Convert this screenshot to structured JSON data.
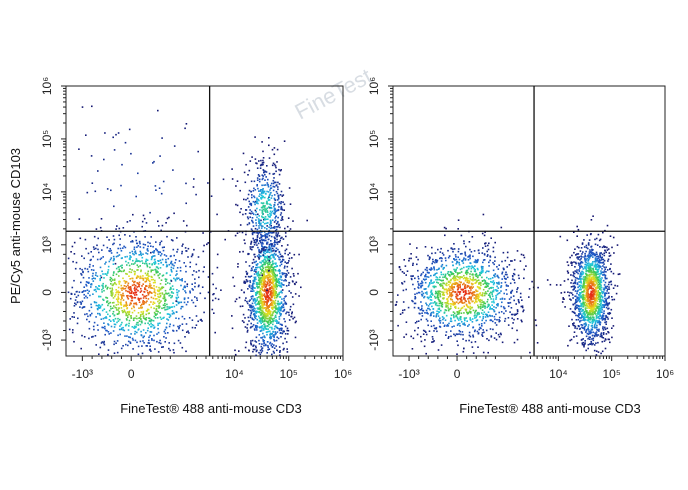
{
  "chart_data": [
    {
      "type": "scatter",
      "panel": "left",
      "xlabel": "FineTest® 488 anti-mouse CD3",
      "ylabel": "PE/Cy5 anti-mouse CD103",
      "x_scale": "biexponential",
      "y_scale": "biexponential",
      "xlim": [
        -2000,
        1000000
      ],
      "ylim": [
        -2000,
        1000000
      ],
      "x_ticks": [
        "-10³",
        "0",
        "10⁴",
        "10⁵",
        "10⁶"
      ],
      "y_ticks": [
        "-10³",
        "0",
        "10³",
        "10⁴",
        "10⁵",
        "10⁶"
      ],
      "gate": {
        "x": 3500,
        "y": 1800
      },
      "populations": [
        {
          "name": "",
          "x_center": 100,
          "y_center": 0,
          "x_spread": 700,
          "y_spread": 650,
          "density": "high"
        },
        {
          "name": "",
          "x_center": 40000,
          "y_center": 0,
          "x_spread": 0.2,
          "y_spread": 700,
          "density": "high"
        },
        {
          "name": "",
          "x_center": 35000,
          "y_center": 5000,
          "x_spread": 0.2,
          "y_spread": 0.45,
          "density": "medium"
        },
        {
          "name": "",
          "x_center": 200,
          "y_center": 15000,
          "x_spread": 900,
          "y_spread": 0.8,
          "density": "low"
        }
      ]
    },
    {
      "type": "scatter",
      "panel": "right",
      "xlabel": "FineTest® 488 anti-mouse CD3",
      "ylabel": "",
      "x_scale": "biexponential",
      "y_scale": "biexponential",
      "xlim": [
        -2000,
        1000000
      ],
      "ylim": [
        -2000,
        1000000
      ],
      "x_ticks": [
        "-10³",
        "0",
        "10⁴",
        "10⁵",
        "10⁶"
      ],
      "y_ticks": [
        "-10³",
        "0",
        "10³",
        "10⁴",
        "10⁵",
        "10⁶"
      ],
      "gate": {
        "x": 3500,
        "y": 1800
      },
      "populations": [
        {
          "name": "",
          "x_center": 100,
          "y_center": 0,
          "x_spread": 600,
          "y_spread": 500,
          "density": "high"
        },
        {
          "name": "",
          "x_center": 40000,
          "y_center": 0,
          "x_spread": 0.18,
          "y_spread": 550,
          "density": "high"
        }
      ]
    }
  ],
  "watermark": "FineTest",
  "colors": {
    "low": "#1a1a8a",
    "mid": "#22c3e0",
    "high": "#e8e020",
    "peak": "#e02010"
  }
}
